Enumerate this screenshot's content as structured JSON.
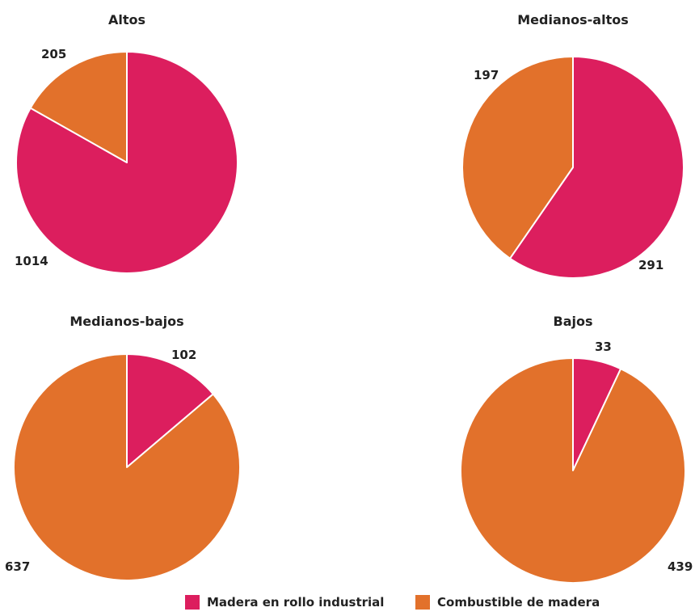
{
  "colors": {
    "industrial": "#dc1e5e",
    "fuel": "#e2712b"
  },
  "chart_data": [
    {
      "type": "pie",
      "title": "Altos",
      "slices": [
        {
          "name": "Madera en rollo industrial",
          "value": 1014,
          "label": "1014"
        },
        {
          "name": "Combustible de madera",
          "value": 205,
          "label": "205"
        }
      ]
    },
    {
      "type": "pie",
      "title": "Medianos-altos",
      "slices": [
        {
          "name": "Madera en rollo industrial",
          "value": 291,
          "label": "291"
        },
        {
          "name": "Combustible de madera",
          "value": 197,
          "label": "197"
        }
      ]
    },
    {
      "type": "pie",
      "title": "Medianos-bajos",
      "slices": [
        {
          "name": "Madera en rollo industrial",
          "value": 102,
          "label": "102"
        },
        {
          "name": "Combustible de madera",
          "value": 637,
          "label": "637"
        }
      ]
    },
    {
      "type": "pie",
      "title": "Bajos",
      "slices": [
        {
          "name": "Madera en rollo industrial",
          "value": 33,
          "label": "33"
        },
        {
          "name": "Combustible de madera",
          "value": 439,
          "label": "439"
        }
      ]
    }
  ],
  "legend": {
    "items": [
      {
        "label": "Madera en rollo industrial",
        "color": "#dc1e5e"
      },
      {
        "label": "Combustible de madera",
        "color": "#e2712b"
      }
    ]
  }
}
